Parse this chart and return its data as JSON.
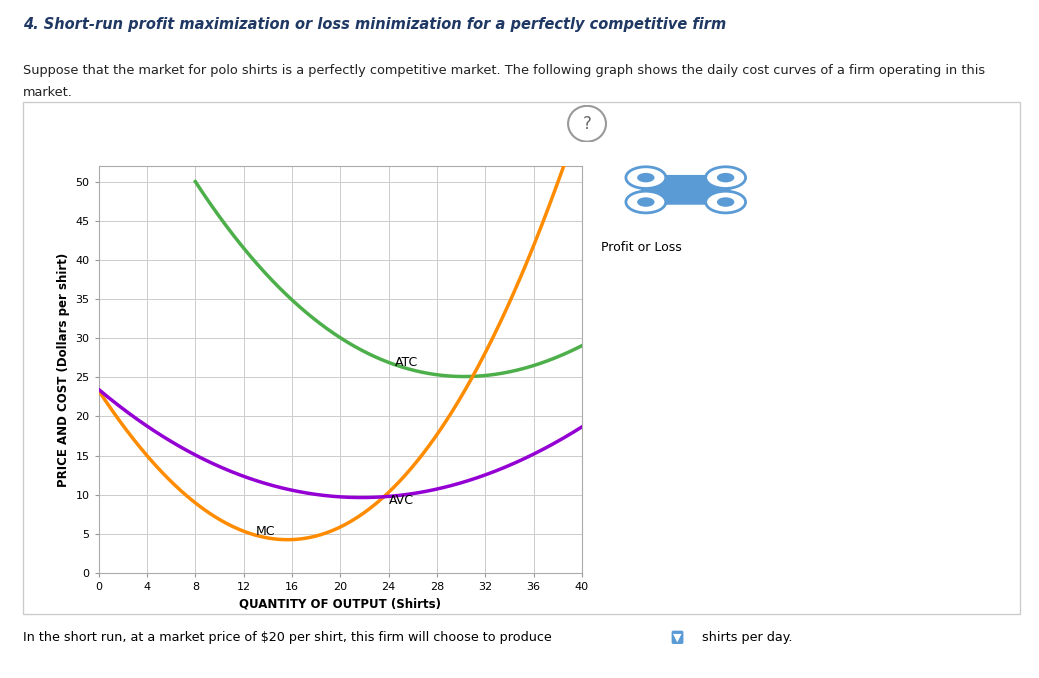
{
  "title_line1": "4. Short-run profit maximization or loss minimization for a perfectly competitive firm",
  "subtitle1": "Suppose that the market for polo shirts is a perfectly competitive market. The following graph shows the daily cost curves of a firm operating in this",
  "subtitle2": "market.",
  "xlabel": "QUANTITY OF OUTPUT (Shirts)",
  "ylabel": "PRICE AND COST (Dollars per shirt)",
  "xlim": [
    0,
    40
  ],
  "ylim": [
    0,
    52
  ],
  "xticks": [
    0,
    4,
    8,
    12,
    16,
    20,
    24,
    28,
    32,
    36,
    40
  ],
  "yticks": [
    0,
    5,
    10,
    15,
    20,
    25,
    30,
    35,
    40,
    45,
    50
  ],
  "atc_color": "#4daf4a",
  "mc_color": "#ff8c00",
  "avc_color": "#9400d3",
  "background_color": "#ffffff",
  "grid_color": "#cccccc",
  "footer_text": "In the short run, at a market price of $20 per shirt, this firm will choose to produce",
  "footer_suffix": "shirts per day.",
  "legend_label": "Profit or Loss",
  "icon_color": "#5b9bd5",
  "atc_x": [
    8,
    16,
    20,
    24,
    28,
    32,
    40
  ],
  "atc_y": [
    50,
    35,
    30,
    27,
    25,
    25.5,
    29
  ],
  "mc_x": [
    0,
    4,
    8,
    12,
    16,
    20,
    24,
    28,
    32,
    36,
    38
  ],
  "mc_y": [
    24,
    14,
    8.5,
    5.5,
    5,
    6.5,
    10,
    17,
    28,
    42,
    50
  ],
  "avc_x": [
    0,
    4,
    8,
    12,
    16,
    20,
    24,
    28,
    32,
    36,
    40
  ],
  "avc_y": [
    24,
    18,
    15,
    12,
    11,
    10.3,
    10,
    10.5,
    12,
    15,
    19
  ]
}
